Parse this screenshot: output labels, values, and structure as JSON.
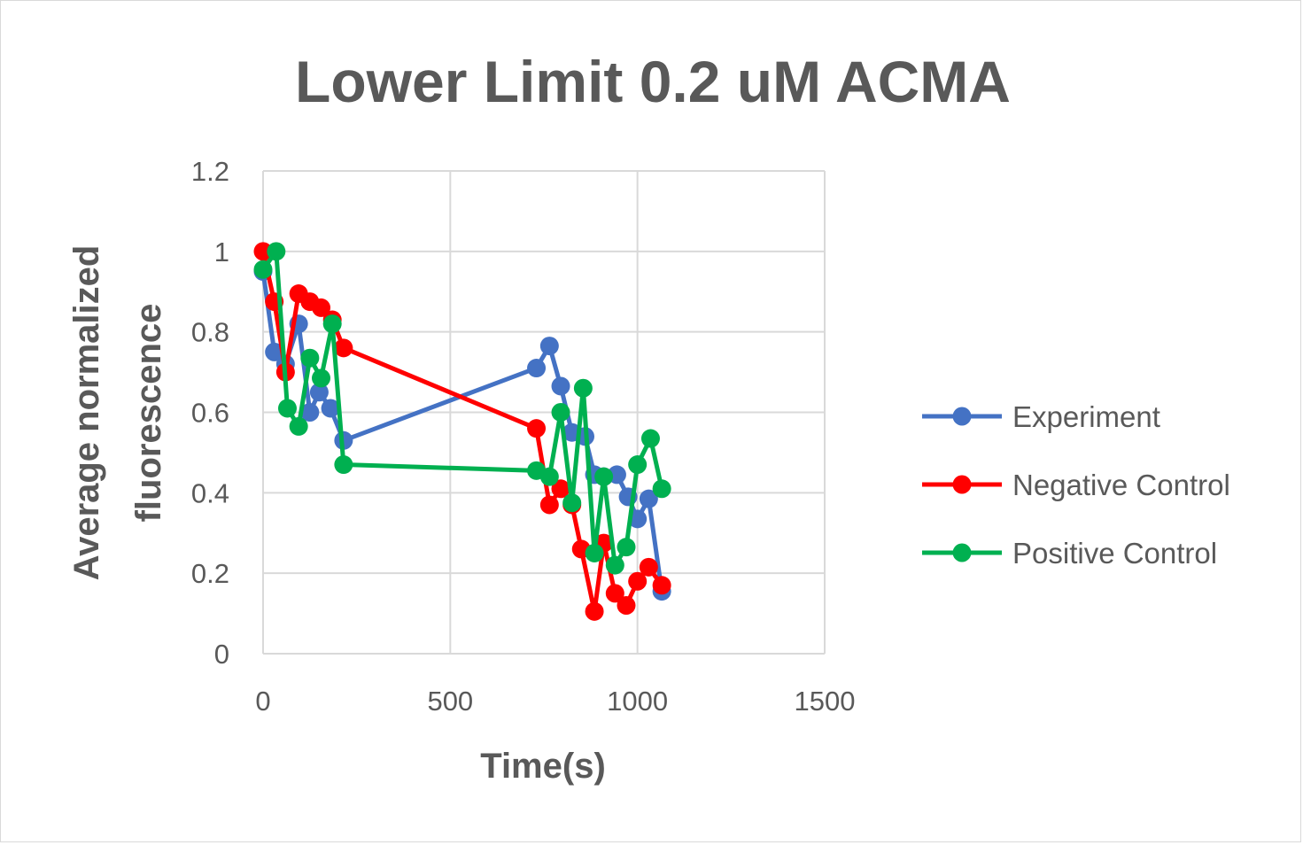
{
  "chart_data": {
    "type": "line",
    "title": "Lower Limit 0.2 uM ACMA",
    "xlabel": "Time(s)",
    "ylabel_lines": [
      "Average normalized",
      "fluorescence"
    ],
    "xlim": [
      0,
      1500
    ],
    "ylim": [
      0,
      1.2
    ],
    "xticks": [
      0,
      500,
      1000,
      1500
    ],
    "xtick_labels": [
      "0",
      "500",
      "1000",
      "1500"
    ],
    "yticks": [
      0,
      0.2,
      0.4,
      0.6,
      0.8,
      1,
      1.2
    ],
    "ytick_labels": [
      "0",
      "0.2",
      "0.4",
      "0.6",
      "0.8",
      "1",
      "1.2"
    ],
    "grid": true,
    "legend_position": "right",
    "series": [
      {
        "name": "Experiment",
        "color": "#4472c4",
        "x": [
          0,
          30,
          60,
          95,
          125,
          150,
          180,
          215,
          730,
          765,
          795,
          825,
          860,
          885,
          910,
          945,
          975,
          1000,
          1030,
          1065
        ],
        "y": [
          0.95,
          0.75,
          0.72,
          0.82,
          0.6,
          0.65,
          0.61,
          0.53,
          0.71,
          0.765,
          0.665,
          0.55,
          0.54,
          0.445,
          0.44,
          0.445,
          0.39,
          0.335,
          0.385,
          0.155
        ]
      },
      {
        "name": "Negative Control",
        "color": "#ff0000",
        "x": [
          0,
          30,
          60,
          95,
          125,
          155,
          185,
          215,
          730,
          765,
          795,
          825,
          850,
          885,
          910,
          940,
          970,
          1000,
          1030,
          1065
        ],
        "y": [
          1.0,
          0.875,
          0.7,
          0.895,
          0.875,
          0.86,
          0.83,
          0.76,
          0.56,
          0.37,
          0.41,
          0.37,
          0.26,
          0.105,
          0.275,
          0.15,
          0.12,
          0.18,
          0.215,
          0.17
        ]
      },
      {
        "name": "Positive Control",
        "color": "#00b050",
        "x": [
          0,
          35,
          65,
          95,
          125,
          155,
          185,
          215,
          730,
          765,
          795,
          825,
          855,
          885,
          910,
          940,
          970,
          1000,
          1035,
          1065
        ],
        "y": [
          0.955,
          1.0,
          0.61,
          0.565,
          0.735,
          0.685,
          0.82,
          0.47,
          0.455,
          0.44,
          0.6,
          0.375,
          0.66,
          0.25,
          0.44,
          0.22,
          0.265,
          0.47,
          0.535,
          0.41
        ]
      }
    ]
  }
}
